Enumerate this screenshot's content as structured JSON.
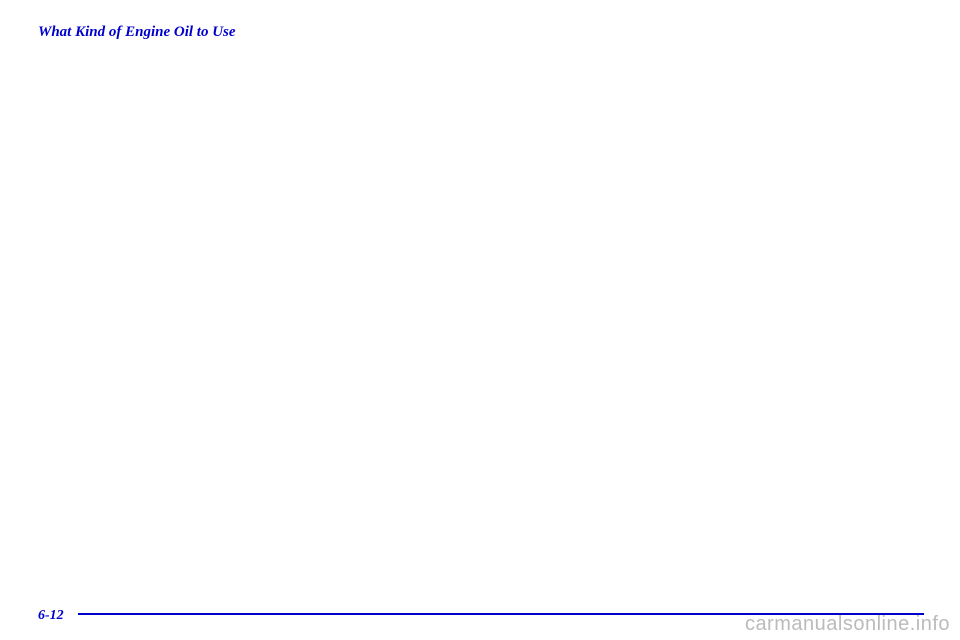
{
  "title": "What Kind of Engine Oil to Use",
  "pageNumber": "6-12",
  "watermark": "carmanualsonline.info",
  "colors": {
    "heading": "#0000cc",
    "rule": "#0000cc",
    "watermark": "#bbbbbb",
    "background": "#ffffff"
  }
}
